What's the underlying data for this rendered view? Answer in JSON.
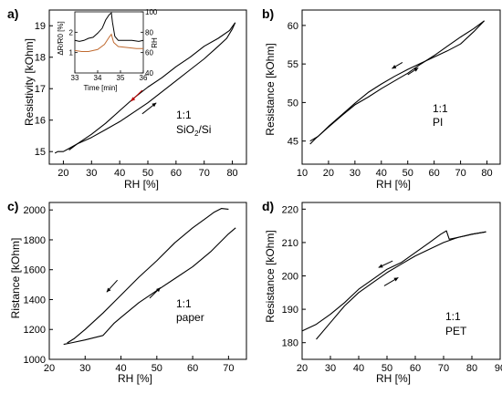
{
  "chart_data": [
    {
      "panel": "a)",
      "type": "line",
      "xlabel": "RH [%]",
      "ylabel": "Resistivity [kOhm]",
      "xlim": [
        15,
        85
      ],
      "ylim": [
        14.6,
        19.5
      ],
      "xticks": [
        20,
        30,
        40,
        50,
        60,
        70,
        80
      ],
      "yticks": [
        15,
        16,
        17,
        18,
        19
      ],
      "annotation": [
        "1:1",
        "SiO",
        "2",
        "/Si"
      ],
      "series": [
        {
          "values": [
            [
              17,
              14.95
            ],
            [
              18,
              15.0
            ],
            [
              20,
              15.0
            ],
            [
              21,
              15.05
            ],
            [
              25,
              15.25
            ],
            [
              30,
              15.45
            ],
            [
              35,
              15.7
            ],
            [
              40,
              15.95
            ],
            [
              45,
              16.25
            ],
            [
              50,
              16.55
            ],
            [
              55,
              16.9
            ],
            [
              60,
              17.25
            ],
            [
              65,
              17.6
            ],
            [
              70,
              17.95
            ],
            [
              75,
              18.35
            ],
            [
              78,
              18.6
            ],
            [
              80,
              18.9
            ],
            [
              81,
              19.1
            ]
          ]
        },
        {
          "values": [
            [
              81,
              19.1
            ],
            [
              79,
              18.85
            ],
            [
              75,
              18.6
            ],
            [
              70,
              18.35
            ],
            [
              65,
              18.0
            ],
            [
              60,
              17.7
            ],
            [
              55,
              17.35
            ],
            [
              50,
              17.05
            ],
            [
              45,
              16.7
            ],
            [
              40,
              16.3
            ],
            [
              35,
              15.9
            ],
            [
              30,
              15.55
            ],
            [
              25,
              15.25
            ],
            [
              22,
              15.05
            ]
          ]
        }
      ],
      "inset": {
        "xlabel": "Time [min]",
        "ylabel_left": "ΔR/R0 [%]",
        "ylabel_right": "RH",
        "xlim": [
          33,
          36
        ],
        "ylim_left": [
          0,
          3
        ],
        "ylim_right": [
          40,
          100
        ],
        "xticks": [
          33,
          34,
          35,
          36
        ],
        "yticks_left": [
          1,
          2
        ],
        "yticks_right": [
          40,
          60,
          80,
          100
        ],
        "series": [
          {
            "name": "1",
            "color": "#000000",
            "values": [
              [
                33.0,
                1.6
              ],
              [
                33.2,
                1.55
              ],
              [
                33.4,
                1.6
              ],
              [
                33.6,
                1.7
              ],
              [
                33.8,
                1.75
              ],
              [
                34.0,
                1.95
              ],
              [
                34.2,
                2.2
              ],
              [
                34.35,
                2.6
              ],
              [
                34.5,
                2.85
              ],
              [
                34.6,
                2.95
              ],
              [
                34.65,
                2.5
              ],
              [
                34.75,
                1.8
              ],
              [
                34.9,
                1.6
              ],
              [
                35.2,
                1.6
              ],
              [
                35.5,
                1.6
              ],
              [
                35.8,
                1.55
              ],
              [
                36.0,
                1.6
              ]
            ]
          },
          {
            "name": "2",
            "color": "#c06a30",
            "values": [
              [
                33.0,
                1.1
              ],
              [
                33.3,
                1.05
              ],
              [
                33.6,
                1.05
              ],
              [
                34.0,
                1.15
              ],
              [
                34.3,
                1.4
              ],
              [
                34.5,
                1.75
              ],
              [
                34.6,
                1.9
              ],
              [
                34.7,
                1.5
              ],
              [
                34.9,
                1.3
              ],
              [
                35.3,
                1.25
              ],
              [
                35.7,
                1.2
              ],
              [
                36.0,
                1.2
              ]
            ]
          }
        ]
      }
    },
    {
      "panel": "b)",
      "type": "line",
      "xlabel": "RH [%]",
      "ylabel": "Resistance [kOhm]",
      "xlim": [
        10,
        85
      ],
      "ylim": [
        42,
        62
      ],
      "xticks": [
        10,
        20,
        30,
        40,
        50,
        60,
        70,
        80
      ],
      "yticks": [
        45,
        50,
        55,
        60
      ],
      "annotation": [
        "1:1",
        "PI"
      ],
      "series": [
        {
          "values": [
            [
              13,
              44.6
            ],
            [
              15,
              45.3
            ],
            [
              20,
              46.8
            ],
            [
              25,
              48.3
            ],
            [
              30,
              49.7
            ],
            [
              35,
              50.7
            ],
            [
              40,
              51.8
            ],
            [
              45,
              52.8
            ],
            [
              50,
              53.8
            ],
            [
              55,
              55.0
            ],
            [
              60,
              56.1
            ],
            [
              65,
              57.3
            ],
            [
              70,
              58.5
            ],
            [
              75,
              59.6
            ],
            [
              79,
              60.6
            ]
          ]
        },
        {
          "values": [
            [
              79,
              60.6
            ],
            [
              75,
              59.2
            ],
            [
              70,
              57.6
            ],
            [
              65,
              56.7
            ],
            [
              60,
              55.9
            ],
            [
              55,
              55.1
            ],
            [
              50,
              54.3
            ],
            [
              45,
              53.4
            ],
            [
              40,
              52.4
            ],
            [
              35,
              51.3
            ],
            [
              30,
              49.9
            ],
            [
              25,
              48.4
            ],
            [
              20,
              46.9
            ],
            [
              16,
              45.6
            ],
            [
              13,
              45.0
            ]
          ]
        }
      ]
    },
    {
      "panel": "c)",
      "type": "line",
      "xlabel": "RH [%]",
      "ylabel": "Ristance [kOhm]",
      "xlim": [
        20,
        75
      ],
      "ylim": [
        1000,
        2050
      ],
      "xticks": [
        20,
        30,
        40,
        50,
        60,
        70
      ],
      "yticks": [
        1000,
        1200,
        1400,
        1600,
        1800,
        2000
      ],
      "annotation": [
        "1:1",
        "paper"
      ],
      "series": [
        {
          "values": [
            [
              24,
              1100
            ],
            [
              26,
              1110
            ],
            [
              30,
              1130
            ],
            [
              35,
              1160
            ],
            [
              38,
              1240
            ],
            [
              40,
              1280
            ],
            [
              45,
              1380
            ],
            [
              50,
              1460
            ],
            [
              55,
              1540
            ],
            [
              60,
              1620
            ],
            [
              65,
              1720
            ],
            [
              70,
              1840
            ],
            [
              72,
              1880
            ]
          ]
        },
        {
          "values": [
            [
              70,
              2005
            ],
            [
              68,
              2010
            ],
            [
              66,
              1985
            ],
            [
              64,
              1950
            ],
            [
              60,
              1880
            ],
            [
              55,
              1780
            ],
            [
              50,
              1660
            ],
            [
              45,
              1550
            ],
            [
              40,
              1430
            ],
            [
              35,
              1310
            ],
            [
              30,
              1200
            ],
            [
              27,
              1140
            ],
            [
              25,
              1110
            ]
          ]
        }
      ]
    },
    {
      "panel": "d)",
      "type": "line",
      "xlabel": "RH [%]",
      "ylabel": "Resistance [kOhm]",
      "xlim": [
        20,
        90
      ],
      "ylim": [
        175,
        222
      ],
      "xticks": [
        20,
        30,
        40,
        50,
        60,
        70,
        80,
        90
      ],
      "yticks": [
        180,
        190,
        200,
        210,
        220
      ],
      "annotation": [
        "1:1",
        "PET"
      ],
      "series": [
        {
          "values": [
            [
              25,
              181
            ],
            [
              30,
              186
            ],
            [
              35,
              191
            ],
            [
              40,
              195
            ],
            [
              45,
              198
            ],
            [
              50,
              201
            ],
            [
              55,
              203.5
            ],
            [
              60,
              206
            ],
            [
              65,
              208
            ],
            [
              70,
              210
            ],
            [
              75,
              211.5
            ],
            [
              80,
              212.5
            ],
            [
              85,
              213.2
            ]
          ]
        },
        {
          "values": [
            [
              85,
              213.2
            ],
            [
              80,
              212.5
            ],
            [
              75,
              211.5
            ],
            [
              72,
              211
            ],
            [
              71,
              213.5
            ],
            [
              69,
              212.5
            ],
            [
              65,
              210
            ],
            [
              60,
              207
            ],
            [
              55,
              204
            ],
            [
              50,
              202
            ],
            [
              45,
              199
            ],
            [
              40,
              196
            ],
            [
              35,
              192
            ],
            [
              30,
              188.5
            ],
            [
              25,
              185.5
            ],
            [
              20,
              183.5
            ]
          ]
        }
      ]
    }
  ]
}
